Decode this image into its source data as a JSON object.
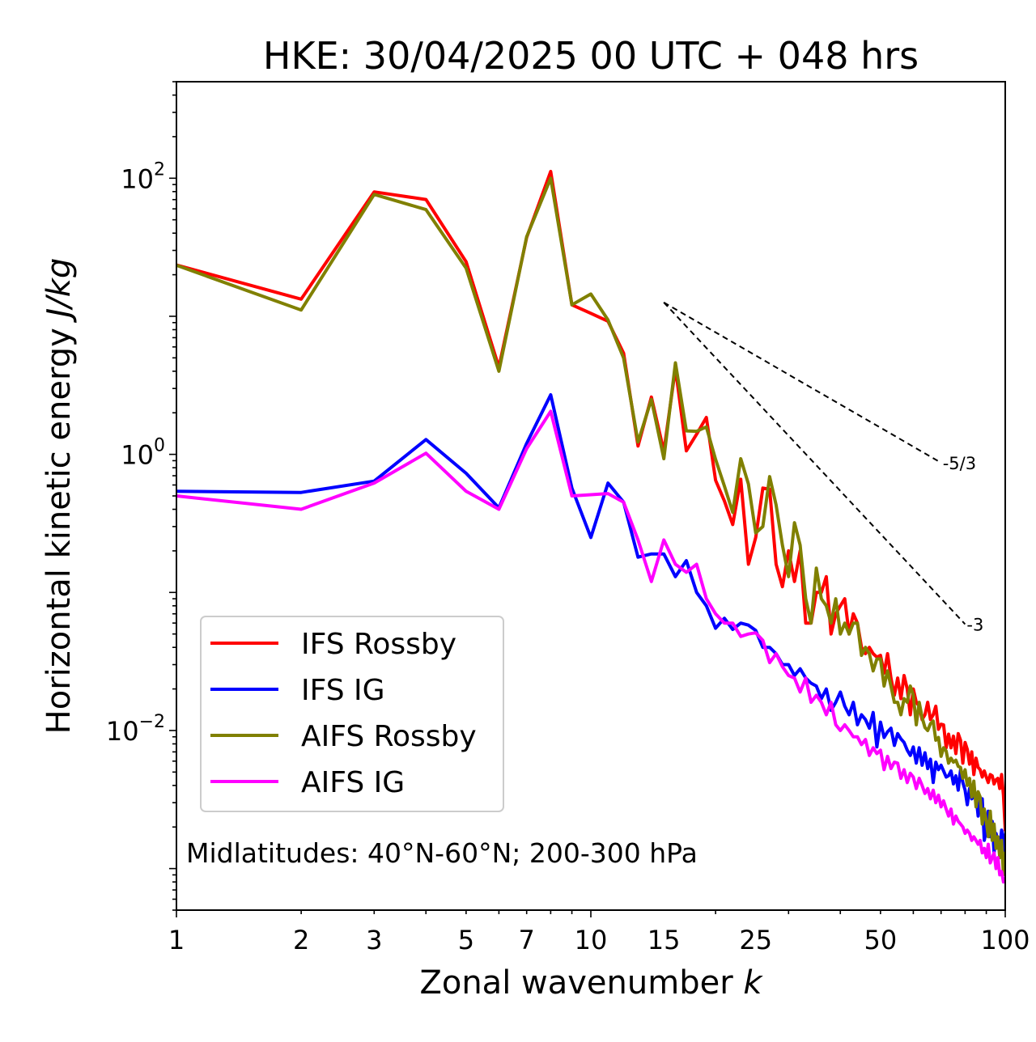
{
  "chart_data": {
    "type": "line",
    "title": "HKE: 30/04/2025 00 UTC + 048 hrs",
    "xlabel_text": "Zonal wavenumber ",
    "xlabel_var": "k",
    "ylabel_text": "Horizontal kinetic energy ",
    "ylabel_unit": "J/kg",
    "xscale": "log",
    "yscale": "log",
    "xlim": [
      1,
      100
    ],
    "ylim": [
      0.0005,
      500
    ],
    "grid": false,
    "legend_position": "lower-left",
    "annotation": "Midlatitudes: 40°N-60°N; 200-300 hPa",
    "x_ticks": [
      {
        "value": 1,
        "label": "1"
      },
      {
        "value": 2,
        "label": "2"
      },
      {
        "value": 3,
        "label": "3"
      },
      {
        "value": 5,
        "label": "5"
      },
      {
        "value": 7,
        "label": "7"
      },
      {
        "value": 10,
        "label": "10"
      },
      {
        "value": 15,
        "label": "15"
      },
      {
        "value": 25,
        "label": "25"
      },
      {
        "value": 50,
        "label": "50"
      },
      {
        "value": 100,
        "label": "100"
      }
    ],
    "y_ticks": [
      {
        "value": 0.01,
        "mant": "10",
        "exp": "−2"
      },
      {
        "value": 1,
        "mant": "10",
        "exp": "0"
      },
      {
        "value": 100,
        "mant": "10",
        "exp": "2"
      }
    ],
    "reference_lines": [
      {
        "label": "-5/3",
        "points": [
          [
            15,
            12.6
          ],
          [
            70,
            0.87
          ]
        ]
      },
      {
        "label": "-3",
        "points": [
          [
            15,
            12.6
          ],
          [
            80,
            0.0589
          ]
        ]
      }
    ],
    "series": [
      {
        "name": "IFS Rossby",
        "color": "#ff0000",
        "x": [
          1,
          2,
          3,
          4,
          5,
          6,
          7,
          8,
          9,
          10,
          11,
          12,
          13,
          14,
          15,
          16,
          17,
          18,
          19,
          20,
          21,
          22,
          23,
          24,
          25,
          26,
          27,
          28,
          29,
          30,
          31,
          32,
          33,
          34,
          35,
          36,
          37,
          38,
          39,
          40,
          41,
          42,
          43,
          44,
          45,
          46,
          47,
          48,
          49,
          50,
          51,
          52,
          53,
          54,
          55,
          56,
          57,
          58,
          59,
          60,
          61,
          62,
          63,
          64,
          65,
          66,
          67,
          68,
          69,
          70,
          71,
          72,
          73,
          74,
          75,
          76,
          77,
          78,
          79,
          80,
          81,
          82,
          83,
          84,
          85,
          86,
          87,
          88,
          89,
          90,
          91,
          92,
          93,
          94,
          95,
          96,
          97,
          98,
          99,
          100
        ],
        "y": [
          23.5,
          13.3,
          79.6,
          70.1,
          24.8,
          4.27,
          37.2,
          112,
          12.1,
          10.5,
          9.2,
          5.4,
          1.15,
          2.6,
          1.05,
          4.2,
          1.06,
          1.4,
          1.85,
          0.65,
          0.46,
          0.31,
          0.66,
          0.16,
          0.25,
          0.57,
          0.56,
          0.16,
          0.11,
          0.2,
          0.12,
          0.2,
          0.06,
          0.06,
          0.1,
          0.1,
          0.13,
          0.05,
          0.07,
          0.08,
          0.09,
          0.05,
          0.07,
          0.06,
          0.04,
          0.036,
          0.04,
          0.036,
          0.034,
          0.035,
          0.026,
          0.036,
          0.024,
          0.018,
          0.024,
          0.017,
          0.025,
          0.02,
          0.013,
          0.02,
          0.016,
          0.015,
          0.012,
          0.013,
          0.016,
          0.012,
          0.013,
          0.015,
          0.0102,
          0.0111,
          0.011,
          0.0075,
          0.0094,
          0.0075,
          0.0091,
          0.0068,
          0.0095,
          0.0085,
          0.0058,
          0.0082,
          0.0073,
          0.0057,
          0.007,
          0.0048,
          0.0063,
          0.0054,
          0.0052,
          0.0046,
          0.0051,
          0.0046,
          0.0042,
          0.0048,
          0.0047,
          0.0041,
          0.0044,
          0.0045,
          0.0038,
          0.0048,
          0.0034,
          0.0019
        ]
      },
      {
        "name": "IFS IG",
        "color": "#0000ff",
        "x": [
          1,
          2,
          3,
          4,
          5,
          6,
          7,
          8,
          9,
          10,
          11,
          12,
          13,
          14,
          15,
          16,
          17,
          18,
          19,
          20,
          21,
          22,
          23,
          24,
          25,
          26,
          27,
          28,
          29,
          30,
          31,
          32,
          33,
          34,
          35,
          36,
          37,
          38,
          39,
          40,
          41,
          42,
          43,
          44,
          45,
          46,
          47,
          48,
          49,
          50,
          51,
          52,
          53,
          54,
          55,
          56,
          57,
          58,
          59,
          60,
          61,
          62,
          63,
          64,
          65,
          66,
          67,
          68,
          69,
          70,
          71,
          72,
          73,
          74,
          75,
          76,
          77,
          78,
          79,
          80,
          81,
          82,
          83,
          84,
          85,
          86,
          87,
          88,
          89,
          90,
          91,
          92,
          93,
          94,
          95,
          96,
          97,
          98,
          99,
          100
        ],
        "y": [
          0.54,
          0.53,
          0.64,
          1.28,
          0.73,
          0.41,
          1.2,
          2.7,
          0.57,
          0.25,
          0.62,
          0.45,
          0.18,
          0.19,
          0.19,
          0.13,
          0.17,
          0.1,
          0.08,
          0.055,
          0.065,
          0.054,
          0.06,
          0.058,
          0.053,
          0.04,
          0.04,
          0.036,
          0.03,
          0.03,
          0.025,
          0.028,
          0.024,
          0.022,
          0.021,
          0.017,
          0.02,
          0.014,
          0.016,
          0.019,
          0.015,
          0.013,
          0.016,
          0.011,
          0.013,
          0.012,
          0.0104,
          0.0135,
          0.0076,
          0.0115,
          0.0089,
          0.0098,
          0.0104,
          0.0078,
          0.0095,
          0.0087,
          0.0082,
          0.0072,
          0.0066,
          0.0076,
          0.0058,
          0.0075,
          0.0056,
          0.0069,
          0.0053,
          0.0062,
          0.0042,
          0.0059,
          0.0052,
          0.0056,
          0.0051,
          0.0046,
          0.0047,
          0.0051,
          0.0041,
          0.0047,
          0.0037,
          0.0052,
          0.0042,
          0.0037,
          0.0029,
          0.0038,
          0.0032,
          0.0033,
          0.0034,
          0.0024,
          0.0031,
          0.0032,
          0.0016,
          0.0019,
          0.0026,
          0.0017,
          0.0022,
          0.0013,
          0.0018,
          0.0016,
          0.0014,
          0.0019,
          0.0017,
          0.0012
        ]
      },
      {
        "name": "AIFS Rossby",
        "color": "#808000",
        "x": [
          1,
          2,
          3,
          4,
          5,
          6,
          7,
          8,
          9,
          10,
          11,
          12,
          13,
          14,
          15,
          16,
          17,
          18,
          19,
          20,
          21,
          22,
          23,
          24,
          25,
          26,
          27,
          28,
          29,
          30,
          31,
          32,
          33,
          34,
          35,
          36,
          37,
          38,
          39,
          40,
          41,
          42,
          43,
          44,
          45,
          46,
          47,
          48,
          49,
          50,
          51,
          52,
          53,
          54,
          55,
          56,
          57,
          58,
          59,
          60,
          61,
          62,
          63,
          64,
          65,
          66,
          67,
          68,
          69,
          70,
          71,
          72,
          73,
          74,
          75,
          76,
          77,
          78,
          79,
          80,
          81,
          82,
          83,
          84,
          85,
          86,
          87,
          88,
          89,
          90,
          91,
          92,
          93,
          94,
          95,
          96,
          97,
          98,
          99,
          100
        ],
        "y": [
          23.4,
          11.1,
          76.3,
          59.2,
          22.3,
          4.0,
          37.7,
          100,
          12.1,
          14.5,
          9.4,
          4.98,
          1.23,
          2.5,
          0.93,
          4.6,
          1.48,
          1.47,
          1.58,
          0.92,
          0.59,
          0.38,
          0.93,
          0.61,
          0.27,
          0.3,
          0.69,
          0.43,
          0.22,
          0.13,
          0.32,
          0.22,
          0.09,
          0.06,
          0.15,
          0.09,
          0.08,
          0.06,
          0.09,
          0.05,
          0.06,
          0.05,
          0.06,
          0.06,
          0.035,
          0.04,
          0.036,
          0.027,
          0.033,
          0.033,
          0.021,
          0.027,
          0.021,
          0.016,
          0.016,
          0.013,
          0.017,
          0.016,
          0.021,
          0.018,
          0.011,
          0.016,
          0.0124,
          0.0105,
          0.01,
          0.0112,
          0.0117,
          0.0085,
          0.0089,
          0.0065,
          0.0075,
          0.0071,
          0.0058,
          0.0063,
          0.0059,
          0.0061,
          0.0055,
          0.0054,
          0.0045,
          0.0052,
          0.004,
          0.0045,
          0.0033,
          0.0043,
          0.0028,
          0.0036,
          0.0033,
          0.0021,
          0.0027,
          0.0022,
          0.0017,
          0.0026,
          0.0016,
          0.0021,
          0.0014,
          0.0017,
          0.0012,
          0.0016,
          0.0009,
          0.0013
        ]
      },
      {
        "name": "AIFS IG",
        "color": "#ff00ff",
        "x": [
          1,
          2,
          3,
          4,
          5,
          6,
          7,
          8,
          9,
          10,
          11,
          12,
          13,
          14,
          15,
          16,
          17,
          18,
          19,
          20,
          21,
          22,
          23,
          24,
          25,
          26,
          27,
          28,
          29,
          30,
          31,
          32,
          33,
          34,
          35,
          36,
          37,
          38,
          39,
          40,
          41,
          42,
          43,
          44,
          45,
          46,
          47,
          48,
          49,
          50,
          51,
          52,
          53,
          54,
          55,
          56,
          57,
          58,
          59,
          60,
          61,
          62,
          63,
          64,
          65,
          66,
          67,
          68,
          69,
          70,
          71,
          72,
          73,
          74,
          75,
          76,
          77,
          78,
          79,
          80,
          81,
          82,
          83,
          84,
          85,
          86,
          87,
          88,
          89,
          90,
          91,
          92,
          93,
          94,
          95,
          96,
          97,
          98,
          99,
          100
        ],
        "y": [
          0.5,
          0.4,
          0.62,
          1.02,
          0.54,
          0.4,
          1.1,
          2.05,
          0.5,
          0.51,
          0.52,
          0.45,
          0.24,
          0.12,
          0.24,
          0.16,
          0.14,
          0.16,
          0.09,
          0.07,
          0.06,
          0.06,
          0.048,
          0.05,
          0.051,
          0.045,
          0.031,
          0.036,
          0.029,
          0.025,
          0.024,
          0.019,
          0.024,
          0.016,
          0.018,
          0.016,
          0.013,
          0.016,
          0.011,
          0.01,
          0.011,
          0.01,
          0.009,
          0.009,
          0.0079,
          0.0086,
          0.0066,
          0.0075,
          0.0068,
          0.0072,
          0.0052,
          0.0065,
          0.0053,
          0.0059,
          0.0058,
          0.0045,
          0.0052,
          0.0042,
          0.0049,
          0.0046,
          0.0038,
          0.0045,
          0.004,
          0.0035,
          0.0038,
          0.0032,
          0.0037,
          0.003,
          0.0034,
          0.0028,
          0.0031,
          0.0027,
          0.0024,
          0.0027,
          0.0021,
          0.0024,
          0.0022,
          0.0021,
          0.002,
          0.0018,
          0.0019,
          0.0018,
          0.0016,
          0.0017,
          0.0016,
          0.0015,
          0.0016,
          0.0013,
          0.0014,
          0.0012,
          0.0015,
          0.0011,
          0.0012,
          0.0013,
          0.001,
          0.0012,
          0.0009,
          0.00095,
          0.0008,
          0.00085
        ]
      }
    ]
  }
}
